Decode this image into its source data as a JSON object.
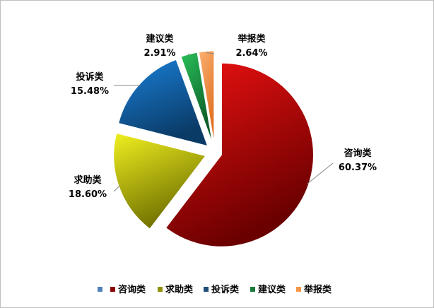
{
  "chart_data": {
    "type": "pie",
    "categories": [
      "咨询类",
      "求助类",
      "投诉类",
      "建议类",
      "举报类"
    ],
    "values": [
      60.37,
      18.6,
      15.48,
      2.91,
      2.64
    ],
    "value_labels": [
      "60.37%",
      "18.60%",
      "15.48%",
      "2.91%",
      "2.64%"
    ],
    "colors": [
      "#c00000",
      "#9b9b00",
      "#1f5fa0",
      "#1a8a3a",
      "#f79646"
    ],
    "legend": {
      "placement": "bottom",
      "entries": [
        "",
        "咨询类",
        "求助类",
        "投诉类",
        "建议类",
        "举报类"
      ],
      "marker_colors": [
        "#4f81bd",
        "#8b0000",
        "#8f8f00",
        "#1f4e79",
        "#1a7a3a",
        "#f79646"
      ]
    },
    "exploded": true
  }
}
